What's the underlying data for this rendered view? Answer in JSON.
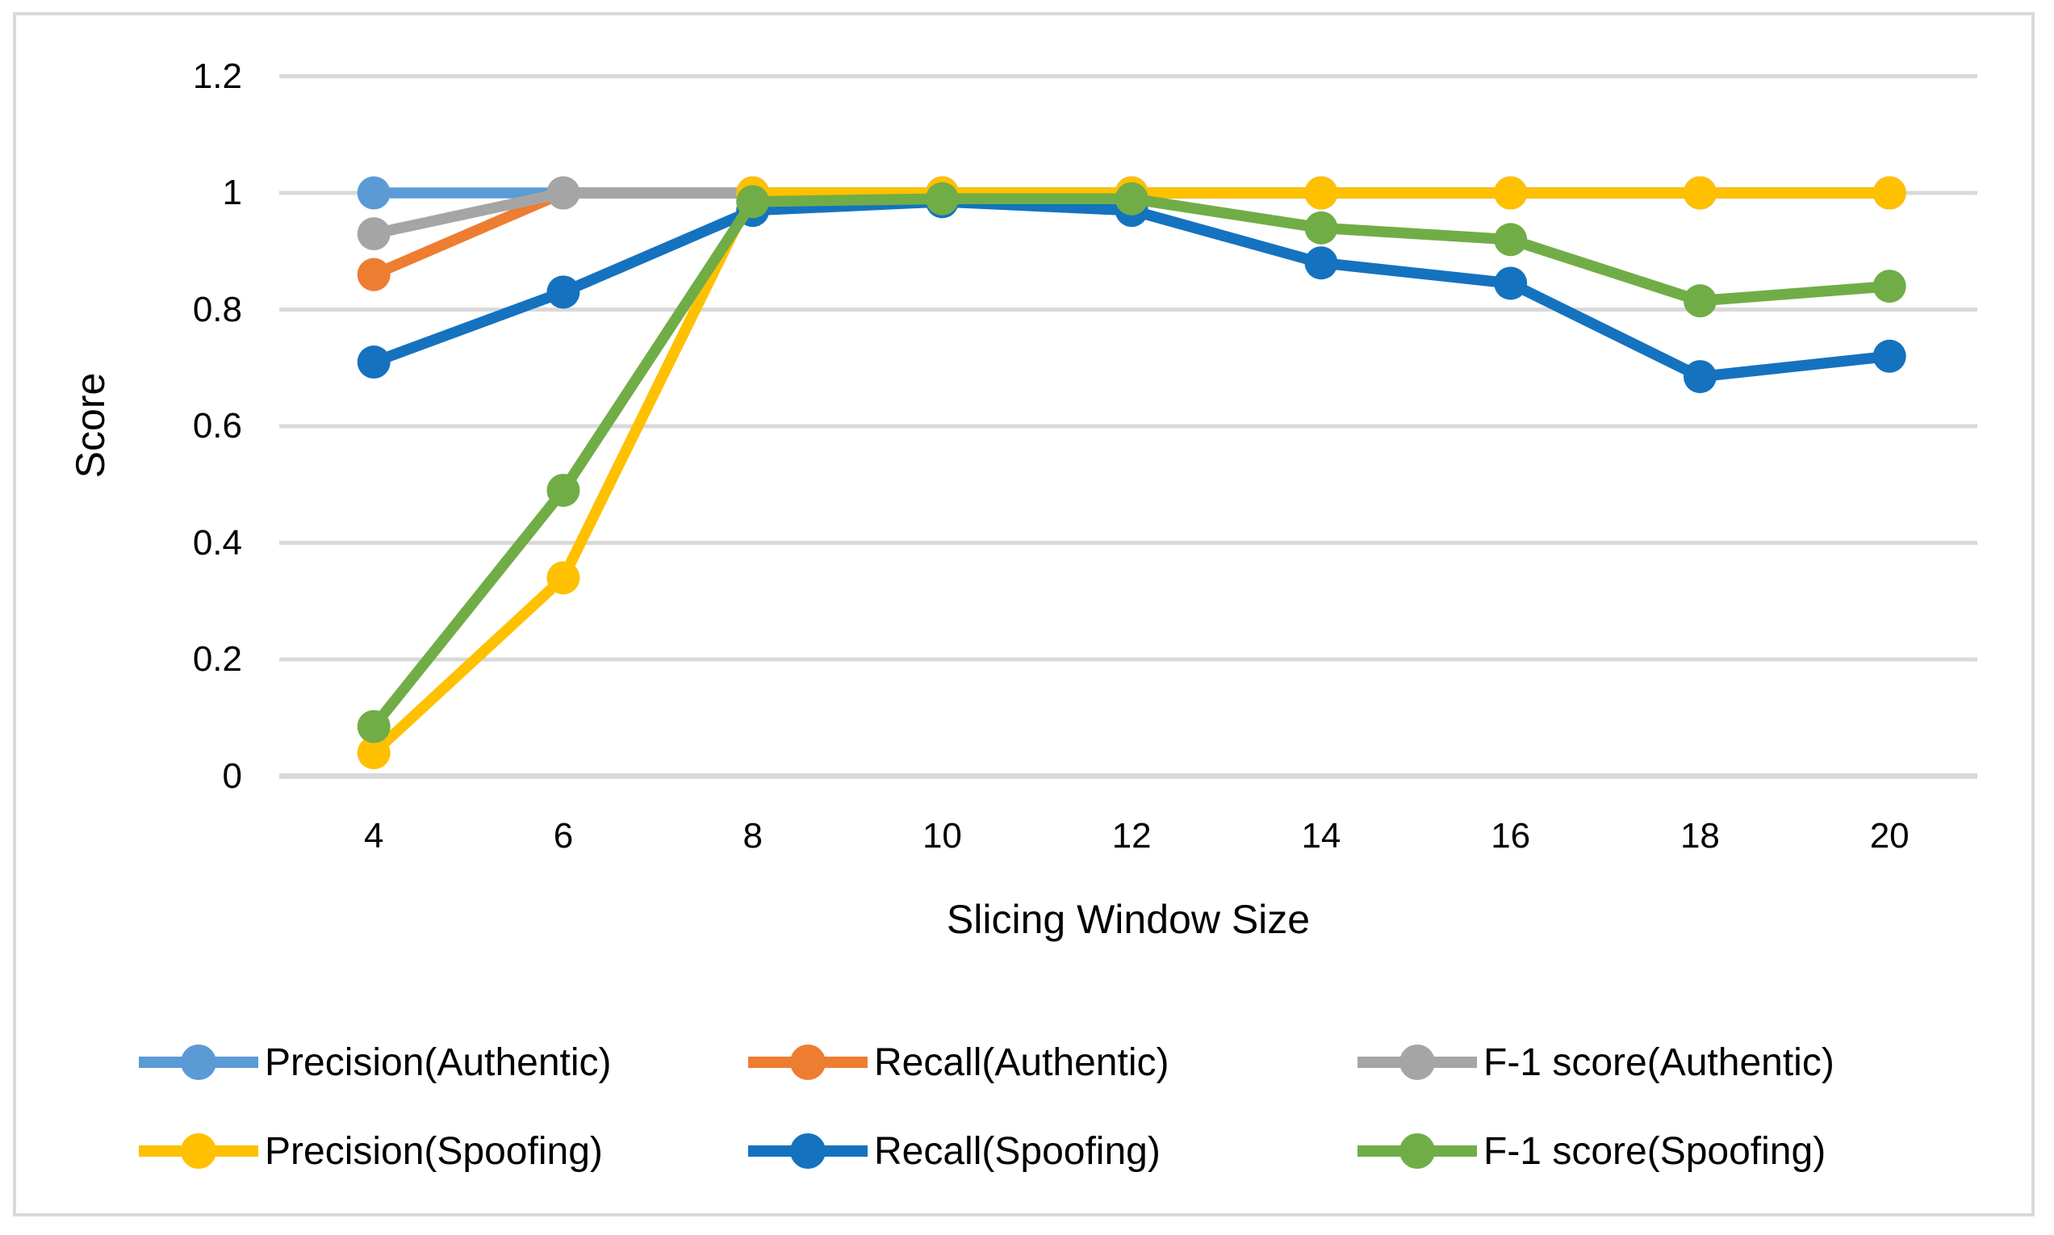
{
  "figure": {
    "background": "#FFFFFF",
    "border_color": "#D9D9D9",
    "gridline_color": "#D9D9D9",
    "text_color": "#000000"
  },
  "chart_data": {
    "type": "line",
    "title": "",
    "xlabel": "Slicing Window Size",
    "ylabel": "Score",
    "categories": [
      4,
      6,
      8,
      10,
      12,
      14,
      16,
      18,
      20
    ],
    "y_ticks": [
      0,
      0.2,
      0.4,
      0.6,
      0.8,
      1,
      1.2
    ],
    "y_tick_labels": [
      "0",
      "0.2",
      "0.4",
      "0.6",
      "0.8",
      "1",
      "1.2"
    ],
    "ylim": [
      0,
      1.2
    ],
    "grid": "horizontal",
    "markers": "circle",
    "legend_position": "bottom",
    "legend_rows": 2,
    "series": [
      {
        "name": "Precision(Authentic)",
        "color": "#5B9BD5",
        "values": [
          1,
          1,
          1,
          1,
          1,
          1,
          1,
          1,
          1
        ]
      },
      {
        "name": "Recall(Authentic)",
        "color": "#ED7D31",
        "values": [
          0.86,
          1,
          1,
          1,
          1,
          1,
          1,
          1,
          1
        ]
      },
      {
        "name": "F-1 score(Authentic)",
        "color": "#A5A5A5",
        "values": [
          0.93,
          1,
          1,
          1,
          1,
          1,
          1,
          1,
          1
        ]
      },
      {
        "name": "Precision(Spoofing)",
        "color": "#FFC000",
        "values": [
          0.04,
          0.34,
          1,
          1,
          1,
          1,
          1,
          1,
          1
        ]
      },
      {
        "name": "Recall(Spoofing)",
        "color": "#1572BF",
        "values": [
          0.71,
          0.83,
          0.97,
          0.985,
          0.97,
          0.88,
          0.845,
          0.685,
          0.72
        ]
      },
      {
        "name": "F-1 score(Spoofing)",
        "color": "#70AD47",
        "values": [
          0.085,
          0.49,
          0.985,
          0.99,
          0.99,
          0.94,
          0.92,
          0.815,
          0.84
        ]
      }
    ]
  }
}
